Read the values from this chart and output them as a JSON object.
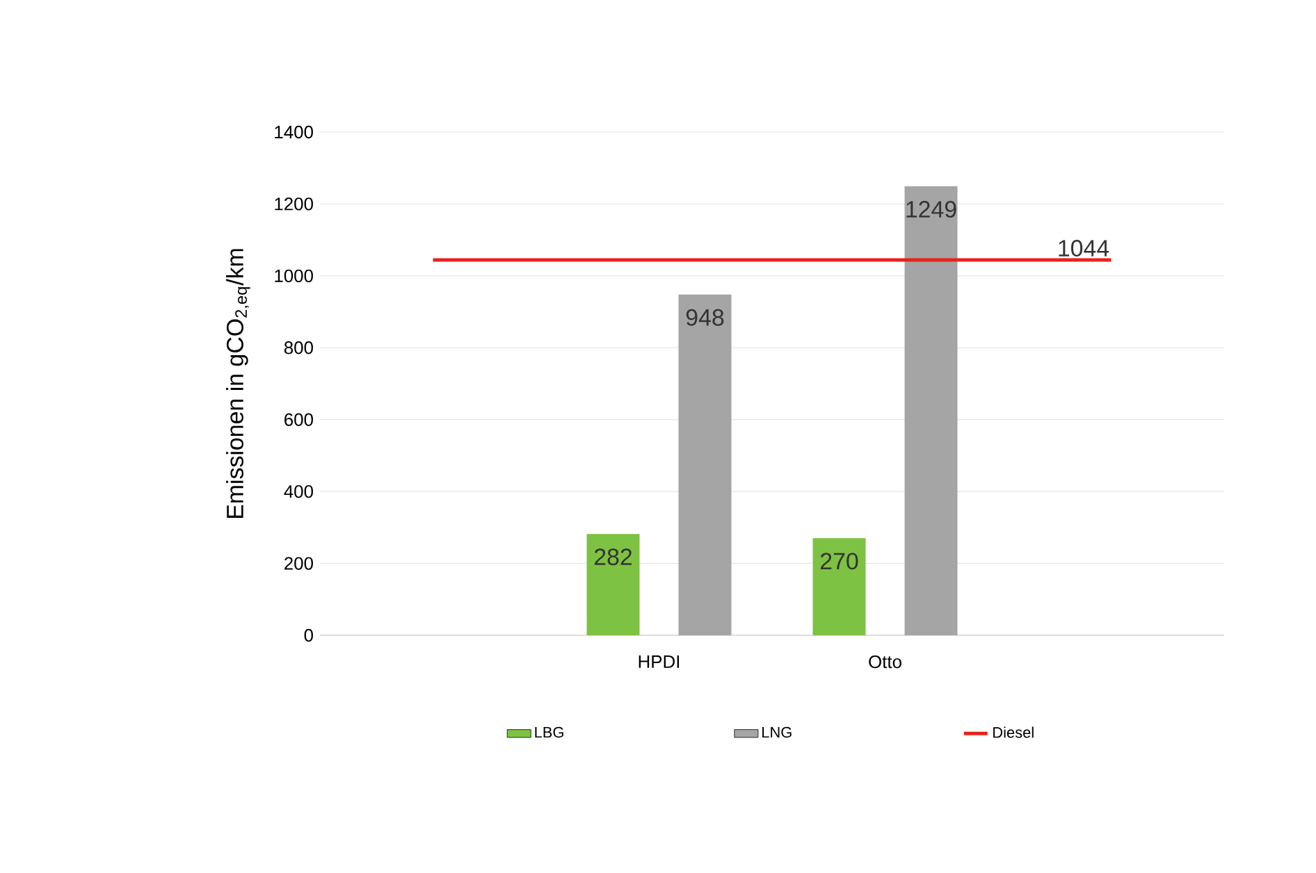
{
  "chart_data": {
    "type": "bar",
    "ylabel": "Emissionen in gCO$_{2,eq}$/km",
    "categories": [
      null,
      "HPDI",
      "Otto",
      null
    ],
    "series": [
      {
        "name": "LBG",
        "color": "#7dc242",
        "values": [
          null,
          282,
          270,
          null
        ],
        "value_labels": [
          null,
          "282",
          "270",
          null
        ]
      },
      {
        "name": "LNG",
        "color": "#a5a5a5",
        "values": [
          null,
          948,
          1249,
          null
        ],
        "value_labels": [
          null,
          "948",
          "1249",
          null
        ]
      },
      {
        "name": "Diesel",
        "type": "line",
        "color": "#e8221c",
        "values": [
          1044,
          1044,
          1044,
          1044
        ],
        "value_labels": [
          null,
          null,
          null,
          "1044"
        ]
      }
    ],
    "ylim": [
      0,
      1400
    ],
    "yticks": [
      0,
      200,
      400,
      600,
      800,
      1000,
      1200,
      1400
    ],
    "grid": "y",
    "legend": "bottom"
  }
}
